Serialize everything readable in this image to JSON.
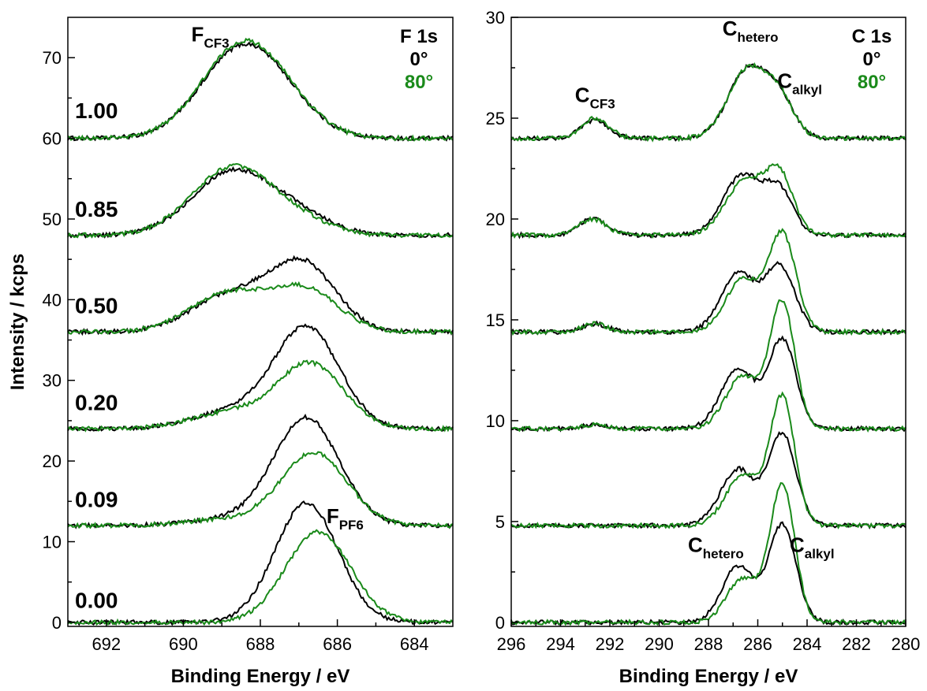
{
  "colors": {
    "angle_0": "#000000",
    "angle_80": "#1a8a1a"
  },
  "chart_data": [
    {
      "type": "line",
      "panel": "left",
      "xlabel": "Binding Energy / eV",
      "ylabel": "Intensity / kcps",
      "xlim": [
        693,
        683
      ],
      "ylim": [
        -0.5,
        75
      ],
      "xticks": [
        692,
        690,
        688,
        686,
        684
      ],
      "yticks": [
        0,
        10,
        20,
        30,
        40,
        50,
        60,
        70
      ],
      "xtick_labels": [
        "692",
        "690",
        "688",
        "686",
        "684"
      ],
      "ytick_labels": [
        "0",
        "10",
        "20",
        "30",
        "40",
        "50",
        "60",
        "70"
      ],
      "core_level_label": "F 1s",
      "angle_labels": [
        "0°",
        "80°"
      ],
      "annotations": [
        {
          "main": "F",
          "sub": "CF3",
          "x": 689.3,
          "y": 72.0
        },
        {
          "main": "F",
          "sub": "PF6",
          "x": 685.8,
          "y": 12.3
        }
      ],
      "fraction_labels": [
        {
          "text": "1.00",
          "y": 62.5
        },
        {
          "text": "0.85",
          "y": 50.3
        },
        {
          "text": "0.50",
          "y": 38.3
        },
        {
          "text": "0.20",
          "y": 26.3
        },
        {
          "text": "0.09",
          "y": 14.3
        },
        {
          "text": "0.00",
          "y": 1.8
        }
      ],
      "series": [
        {
          "fraction": "1.00",
          "angle": "0°",
          "offset": 60,
          "peaks": [
            [
              688.5,
              10.8,
              1.05
            ],
            [
              687.3,
              2.0,
              0.9
            ]
          ]
        },
        {
          "fraction": "1.00",
          "angle": "80°",
          "offset": 60,
          "peaks": [
            [
              688.5,
              11.2,
              1.05
            ],
            [
              687.3,
              2.0,
              0.9
            ]
          ]
        },
        {
          "fraction": "0.85",
          "angle": "0°",
          "offset": 48,
          "peaks": [
            [
              688.7,
              8.0,
              1.05
            ],
            [
              686.9,
              2.0,
              0.8
            ]
          ]
        },
        {
          "fraction": "0.85",
          "angle": "80°",
          "offset": 48,
          "peaks": [
            [
              688.7,
              8.5,
              1.05
            ],
            [
              686.9,
              1.3,
              0.8
            ]
          ]
        },
        {
          "fraction": "0.50",
          "angle": "0°",
          "offset": 36,
          "peaks": [
            [
              688.8,
              4.5,
              1.0
            ],
            [
              686.9,
              8.3,
              0.85
            ]
          ]
        },
        {
          "fraction": "0.50",
          "angle": "80°",
          "offset": 36,
          "peaks": [
            [
              688.8,
              4.8,
              1.0
            ],
            [
              686.8,
              5.0,
              0.85
            ]
          ]
        },
        {
          "fraction": "0.20",
          "angle": "0°",
          "offset": 24,
          "peaks": [
            [
              688.8,
              2.0,
              1.0
            ],
            [
              686.8,
              12.5,
              0.85
            ]
          ]
        },
        {
          "fraction": "0.20",
          "angle": "80°",
          "offset": 24,
          "peaks": [
            [
              688.8,
              2.0,
              1.0
            ],
            [
              686.7,
              8.0,
              0.85
            ]
          ]
        },
        {
          "fraction": "0.09",
          "angle": "0°",
          "offset": 12,
          "peaks": [
            [
              688.8,
              0.8,
              1.0
            ],
            [
              686.8,
              13.3,
              0.85
            ]
          ]
        },
        {
          "fraction": "0.09",
          "angle": "80°",
          "offset": 12,
          "peaks": [
            [
              688.8,
              0.8,
              1.0
            ],
            [
              686.6,
              9.0,
              0.85
            ]
          ]
        },
        {
          "fraction": "0.00",
          "angle": "0°",
          "offset": 0,
          "peaks": [
            [
              686.8,
              14.8,
              0.82
            ]
          ]
        },
        {
          "fraction": "0.00",
          "angle": "80°",
          "offset": 0,
          "peaks": [
            [
              686.5,
              11.2,
              0.85
            ]
          ]
        }
      ]
    },
    {
      "type": "line",
      "panel": "right",
      "xlabel": "Binding Energy / eV",
      "ylabel": "",
      "xlim": [
        296,
        280
      ],
      "ylim": [
        -0.2,
        30
      ],
      "xticks": [
        296,
        294,
        292,
        290,
        288,
        286,
        284,
        282,
        280
      ],
      "yticks": [
        0,
        5,
        10,
        15,
        20,
        25,
        30
      ],
      "xtick_labels": [
        "296",
        "294",
        "292",
        "290",
        "288",
        "286",
        "284",
        "282",
        "280"
      ],
      "ytick_labels": [
        "0",
        "5",
        "10",
        "15",
        "20",
        "25",
        "30"
      ],
      "core_level_label": "C 1s",
      "angle_labels": [
        "0°",
        "80°"
      ],
      "annotations": [
        {
          "main": "C",
          "sub": "hetero",
          "x": 286.3,
          "y": 29.1
        },
        {
          "main": "C",
          "sub": "alkyl",
          "x": 284.3,
          "y": 26.5
        },
        {
          "main": "C",
          "sub": "CF3",
          "x": 292.6,
          "y": 25.8
        },
        {
          "main": "C",
          "sub": "hetero",
          "x": 287.7,
          "y": 3.5
        },
        {
          "main": "C",
          "sub": "alkyl",
          "x": 283.8,
          "y": 3.5
        }
      ],
      "series": [
        {
          "fraction": "1.00",
          "angle": "0°",
          "offset": 24,
          "peaks": [
            [
              292.6,
              0.9,
              0.55
            ],
            [
              286.4,
              3.4,
              0.8
            ],
            [
              285.1,
              1.7,
              0.6
            ]
          ]
        },
        {
          "fraction": "1.00",
          "angle": "80°",
          "offset": 24,
          "peaks": [
            [
              292.6,
              1.0,
              0.55
            ],
            [
              286.4,
              3.4,
              0.8
            ],
            [
              285.1,
              1.7,
              0.6
            ]
          ]
        },
        {
          "fraction": "0.85",
          "angle": "0°",
          "offset": 19.2,
          "peaks": [
            [
              292.7,
              0.8,
              0.55
            ],
            [
              286.6,
              3.0,
              0.8
            ],
            [
              285.1,
              2.0,
              0.55
            ]
          ]
        },
        {
          "fraction": "0.85",
          "angle": "80°",
          "offset": 19.2,
          "peaks": [
            [
              292.7,
              0.8,
              0.55
            ],
            [
              286.5,
              2.7,
              0.8
            ],
            [
              285.1,
              2.8,
              0.55
            ]
          ]
        },
        {
          "fraction": "0.50",
          "angle": "0°",
          "offset": 14.4,
          "peaks": [
            [
              292.6,
              0.4,
              0.5
            ],
            [
              286.8,
              2.9,
              0.7
            ],
            [
              285.1,
              3.2,
              0.6
            ]
          ]
        },
        {
          "fraction": "0.50",
          "angle": "80°",
          "offset": 14.4,
          "peaks": [
            [
              292.6,
              0.4,
              0.5
            ],
            [
              286.6,
              2.6,
              0.7
            ],
            [
              285.0,
              4.8,
              0.55
            ]
          ]
        },
        {
          "fraction": "0.20",
          "angle": "0°",
          "offset": 9.6,
          "peaks": [
            [
              292.6,
              0.2,
              0.5
            ],
            [
              286.8,
              3.0,
              0.7
            ],
            [
              285.0,
              4.4,
              0.55
            ]
          ]
        },
        {
          "fraction": "0.20",
          "angle": "80°",
          "offset": 9.6,
          "peaks": [
            [
              292.6,
              0.2,
              0.5
            ],
            [
              286.6,
              2.6,
              0.7
            ],
            [
              285.0,
              6.2,
              0.5
            ]
          ]
        },
        {
          "fraction": "0.09",
          "angle": "0°",
          "offset": 4.8,
          "peaks": [
            [
              286.8,
              2.8,
              0.7
            ],
            [
              285.0,
              4.5,
              0.55
            ]
          ]
        },
        {
          "fraction": "0.09",
          "angle": "80°",
          "offset": 4.8,
          "peaks": [
            [
              286.6,
              2.5,
              0.7
            ],
            [
              285.0,
              6.3,
              0.5
            ]
          ]
        },
        {
          "fraction": "0.00",
          "angle": "0°",
          "offset": 0,
          "peaks": [
            [
              286.8,
              2.8,
              0.65
            ],
            [
              285.0,
              4.8,
              0.55
            ]
          ]
        },
        {
          "fraction": "0.00",
          "angle": "80°",
          "offset": 0,
          "peaks": [
            [
              286.6,
              2.2,
              0.65
            ],
            [
              285.0,
              6.8,
              0.5
            ]
          ]
        }
      ]
    }
  ]
}
